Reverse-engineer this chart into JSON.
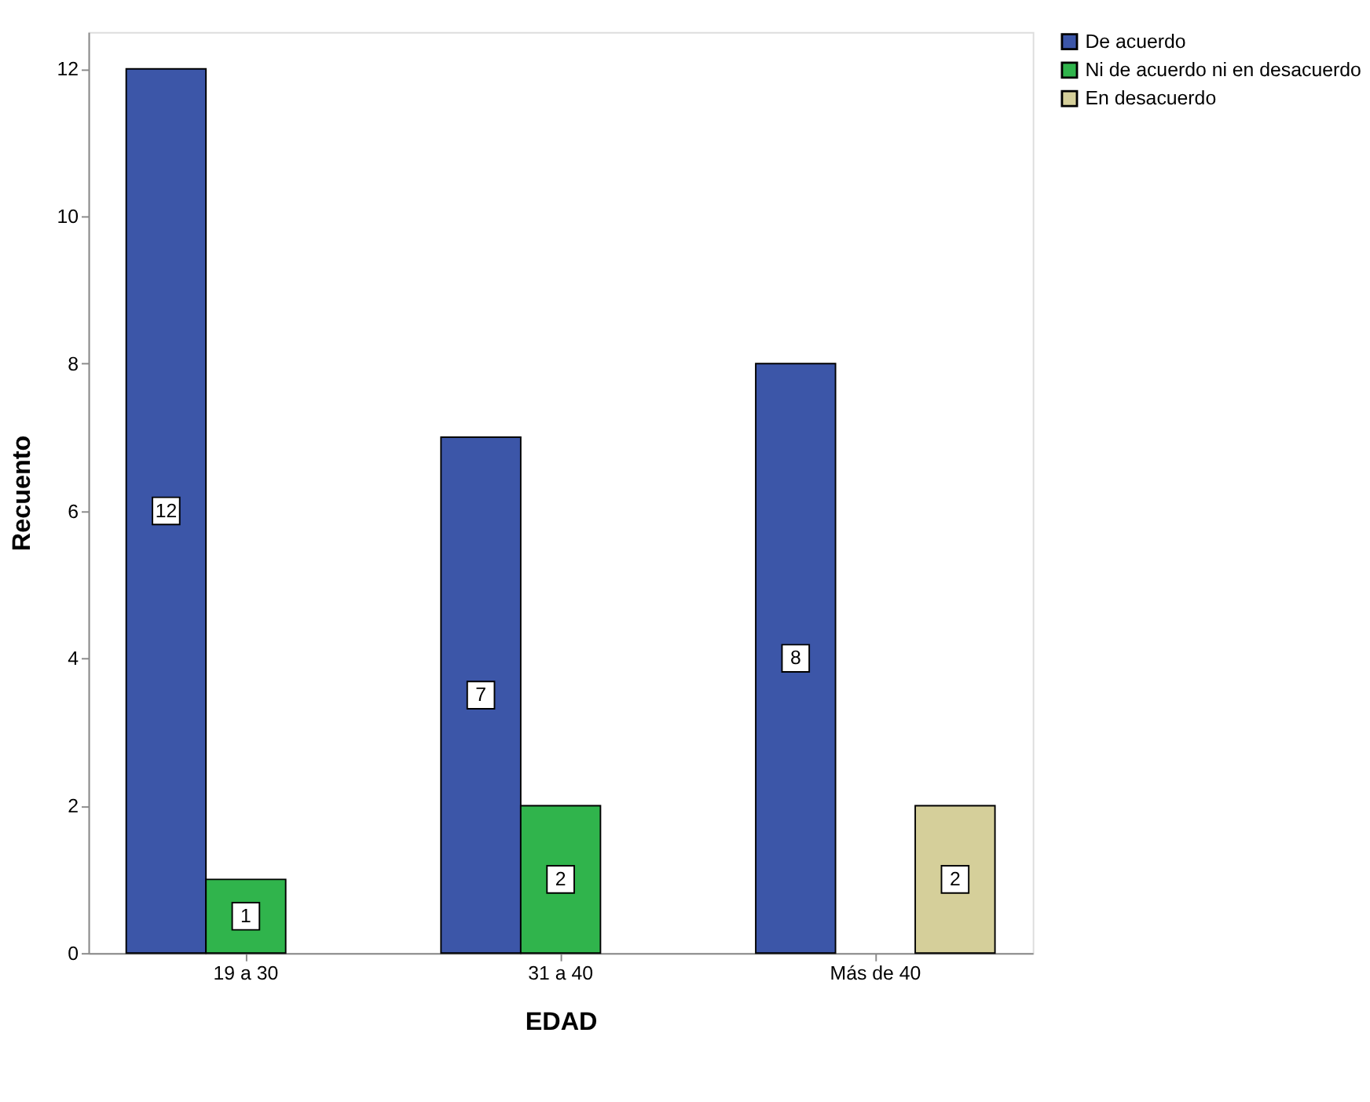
{
  "chart_data": {
    "type": "bar",
    "xlabel": "EDAD",
    "ylabel": "Recuento",
    "categories": [
      "19 a 30",
      "31 a 40",
      "Más de 40"
    ],
    "series": [
      {
        "name": "De acuerdo",
        "color": "#3c56a8",
        "values": [
          12,
          7,
          8
        ]
      },
      {
        "name": "Ni de acuerdo ni en desacuerdo",
        "color": "#30b44c",
        "values": [
          1,
          2,
          null
        ]
      },
      {
        "name": "En desacuerdo",
        "color": "#d5cf9a",
        "values": [
          null,
          null,
          2
        ]
      }
    ],
    "ylim": [
      0,
      12.5
    ],
    "yticks": [
      0,
      2,
      4,
      6,
      8,
      10,
      12
    ],
    "grid": false,
    "legend": "right",
    "data_labels": true
  }
}
